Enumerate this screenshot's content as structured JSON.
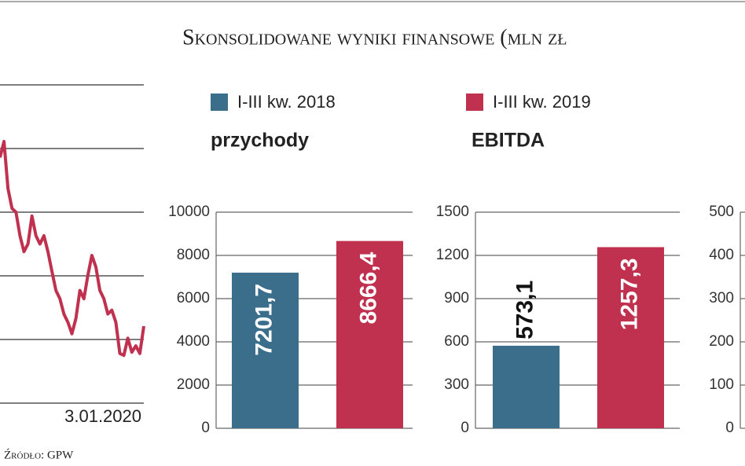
{
  "title": "Skonsolidowane wyniki finansowe (mln zł",
  "source": "Źródło: GPW",
  "chart_data": [
    {
      "type": "line",
      "x_label": "3.01.2020",
      "color": "#c0314f",
      "ylim": [
        0,
        5
      ],
      "grid_lines": [
        0,
        1,
        2,
        3,
        4,
        5
      ],
      "values": [
        3.86,
        4.11,
        3.37,
        3.06,
        3.0,
        2.63,
        2.38,
        2.5,
        2.94,
        2.63,
        2.5,
        2.63,
        2.38,
        2.07,
        1.77,
        1.64,
        1.4,
        1.27,
        1.09,
        1.33,
        1.77,
        1.64,
        2.01,
        2.32,
        2.14,
        1.77,
        1.64,
        1.4,
        1.46,
        1.27,
        0.78,
        0.75,
        1.02,
        0.8,
        0.9,
        0.78,
        1.21
      ]
    },
    {
      "type": "bar",
      "title": "przychody",
      "ylim": [
        0,
        10000
      ],
      "yticks": [
        0,
        2000,
        4000,
        6000,
        8000,
        10000
      ],
      "series": [
        {
          "name": "I-III kw. 2018",
          "color": "#3a6e8a",
          "values": [
            7201.7
          ],
          "value_labels": [
            "7201,7"
          ]
        },
        {
          "name": "I-III kw. 2019",
          "color": "#c0314f",
          "values": [
            8666.4
          ],
          "value_labels": [
            "8666,4"
          ]
        }
      ]
    },
    {
      "type": "bar",
      "title": "EBITDA",
      "ylim": [
        0,
        1500
      ],
      "yticks": [
        0,
        300,
        600,
        900,
        1200,
        1500
      ],
      "series": [
        {
          "name": "I-III kw. 2018",
          "color": "#3a6e8a",
          "values": [
            573.1
          ],
          "value_labels": [
            "573,1"
          ]
        },
        {
          "name": "I-III kw. 2019",
          "color": "#c0314f",
          "values": [
            1257.3
          ],
          "value_labels": [
            "1257,3"
          ]
        }
      ]
    },
    {
      "type": "bar",
      "ylim": [
        0,
        500
      ],
      "yticks": [
        0,
        100,
        200,
        300,
        400,
        500
      ],
      "series": []
    }
  ]
}
